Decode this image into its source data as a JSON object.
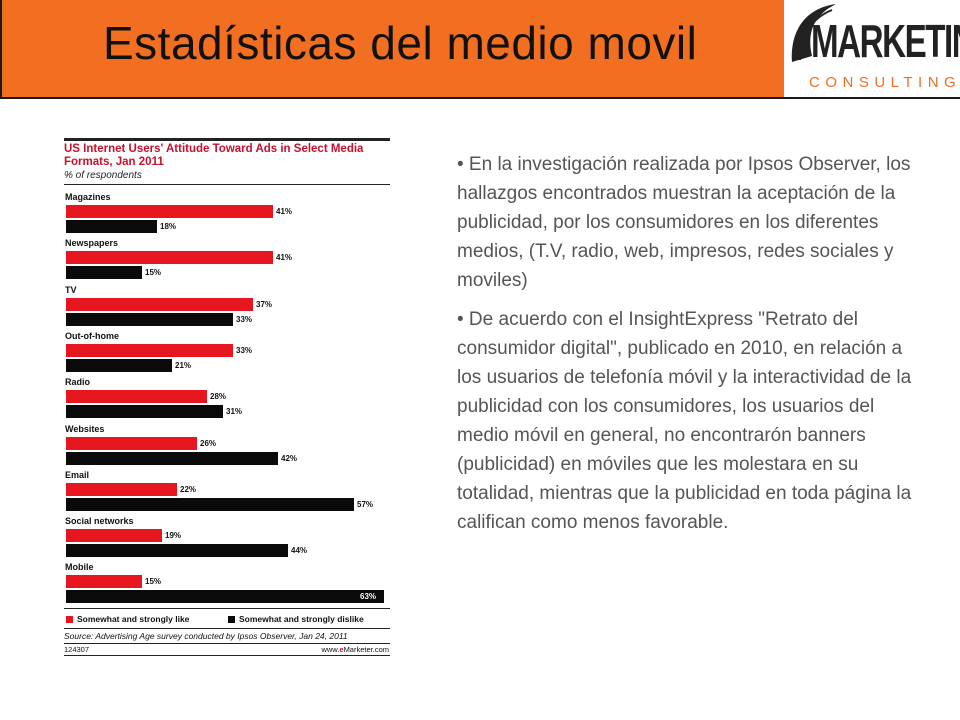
{
  "slide": {
    "title": "Estadísticas del medio movil",
    "logo_main": "MARKETING",
    "logo_sub": "CONSULTINGS"
  },
  "colors": {
    "header": "#f26f21",
    "like": "#e5161e",
    "dislike": "#0a0a0a",
    "title_red": "#c8102e"
  },
  "chart_data": {
    "type": "bar",
    "orientation": "horizontal",
    "title": "US Internet Users' Attitude Toward Ads in Select Media Formats, Jan 2011",
    "subtitle": "% of respondents",
    "categories": [
      "Magazines",
      "Newspapers",
      "TV",
      "Out-of-home",
      "Radio",
      "Websites",
      "Email",
      "Social networks",
      "Mobile"
    ],
    "series": [
      {
        "name": "Somewhat and strongly like",
        "color": "#e5161e",
        "values": [
          41,
          41,
          37,
          33,
          28,
          26,
          22,
          19,
          15
        ],
        "labels": [
          "41%",
          "41%",
          "37%",
          "33%",
          "28%",
          "26%",
          "22%",
          "19%",
          "15%"
        ]
      },
      {
        "name": "Somewhat and strongly dislike",
        "color": "#0a0a0a",
        "values": [
          18,
          15,
          33,
          21,
          31,
          42,
          57,
          44,
          63
        ],
        "labels": [
          "18%",
          "15%",
          "33%",
          "21%",
          "31%",
          "42%",
          "57%",
          "44%",
          "63%"
        ]
      }
    ],
    "source": "Source: Advertising Age survey conducted by Ipsos Observer, Jan 24, 2011",
    "footer_id": "124307",
    "footer_site_pre": "www.",
    "footer_site_brand": "e",
    "footer_site_post": "Marketer.com"
  },
  "body_text": {
    "paragraphs": [
      "• En la investigación realizada por Ipsos Observer, los hallazgos encontrados muestran la aceptación de la publicidad, por los consumidores en los diferentes medios, (T.V, radio, web, impresos, redes sociales y moviles)",
      "• De acuerdo con el InsightExpress \"Retrato del consumidor digital\", publicado en 2010, en relación a los usuarios de telefonía móvil y la interactividad de la publicidad con los consumidores, los usuarios del medio móvil en general, no encontrarón banners (publicidad) en móviles que les molestara en su totalidad, mientras que la publicidad en  toda página la califican como menos favorable."
    ]
  }
}
